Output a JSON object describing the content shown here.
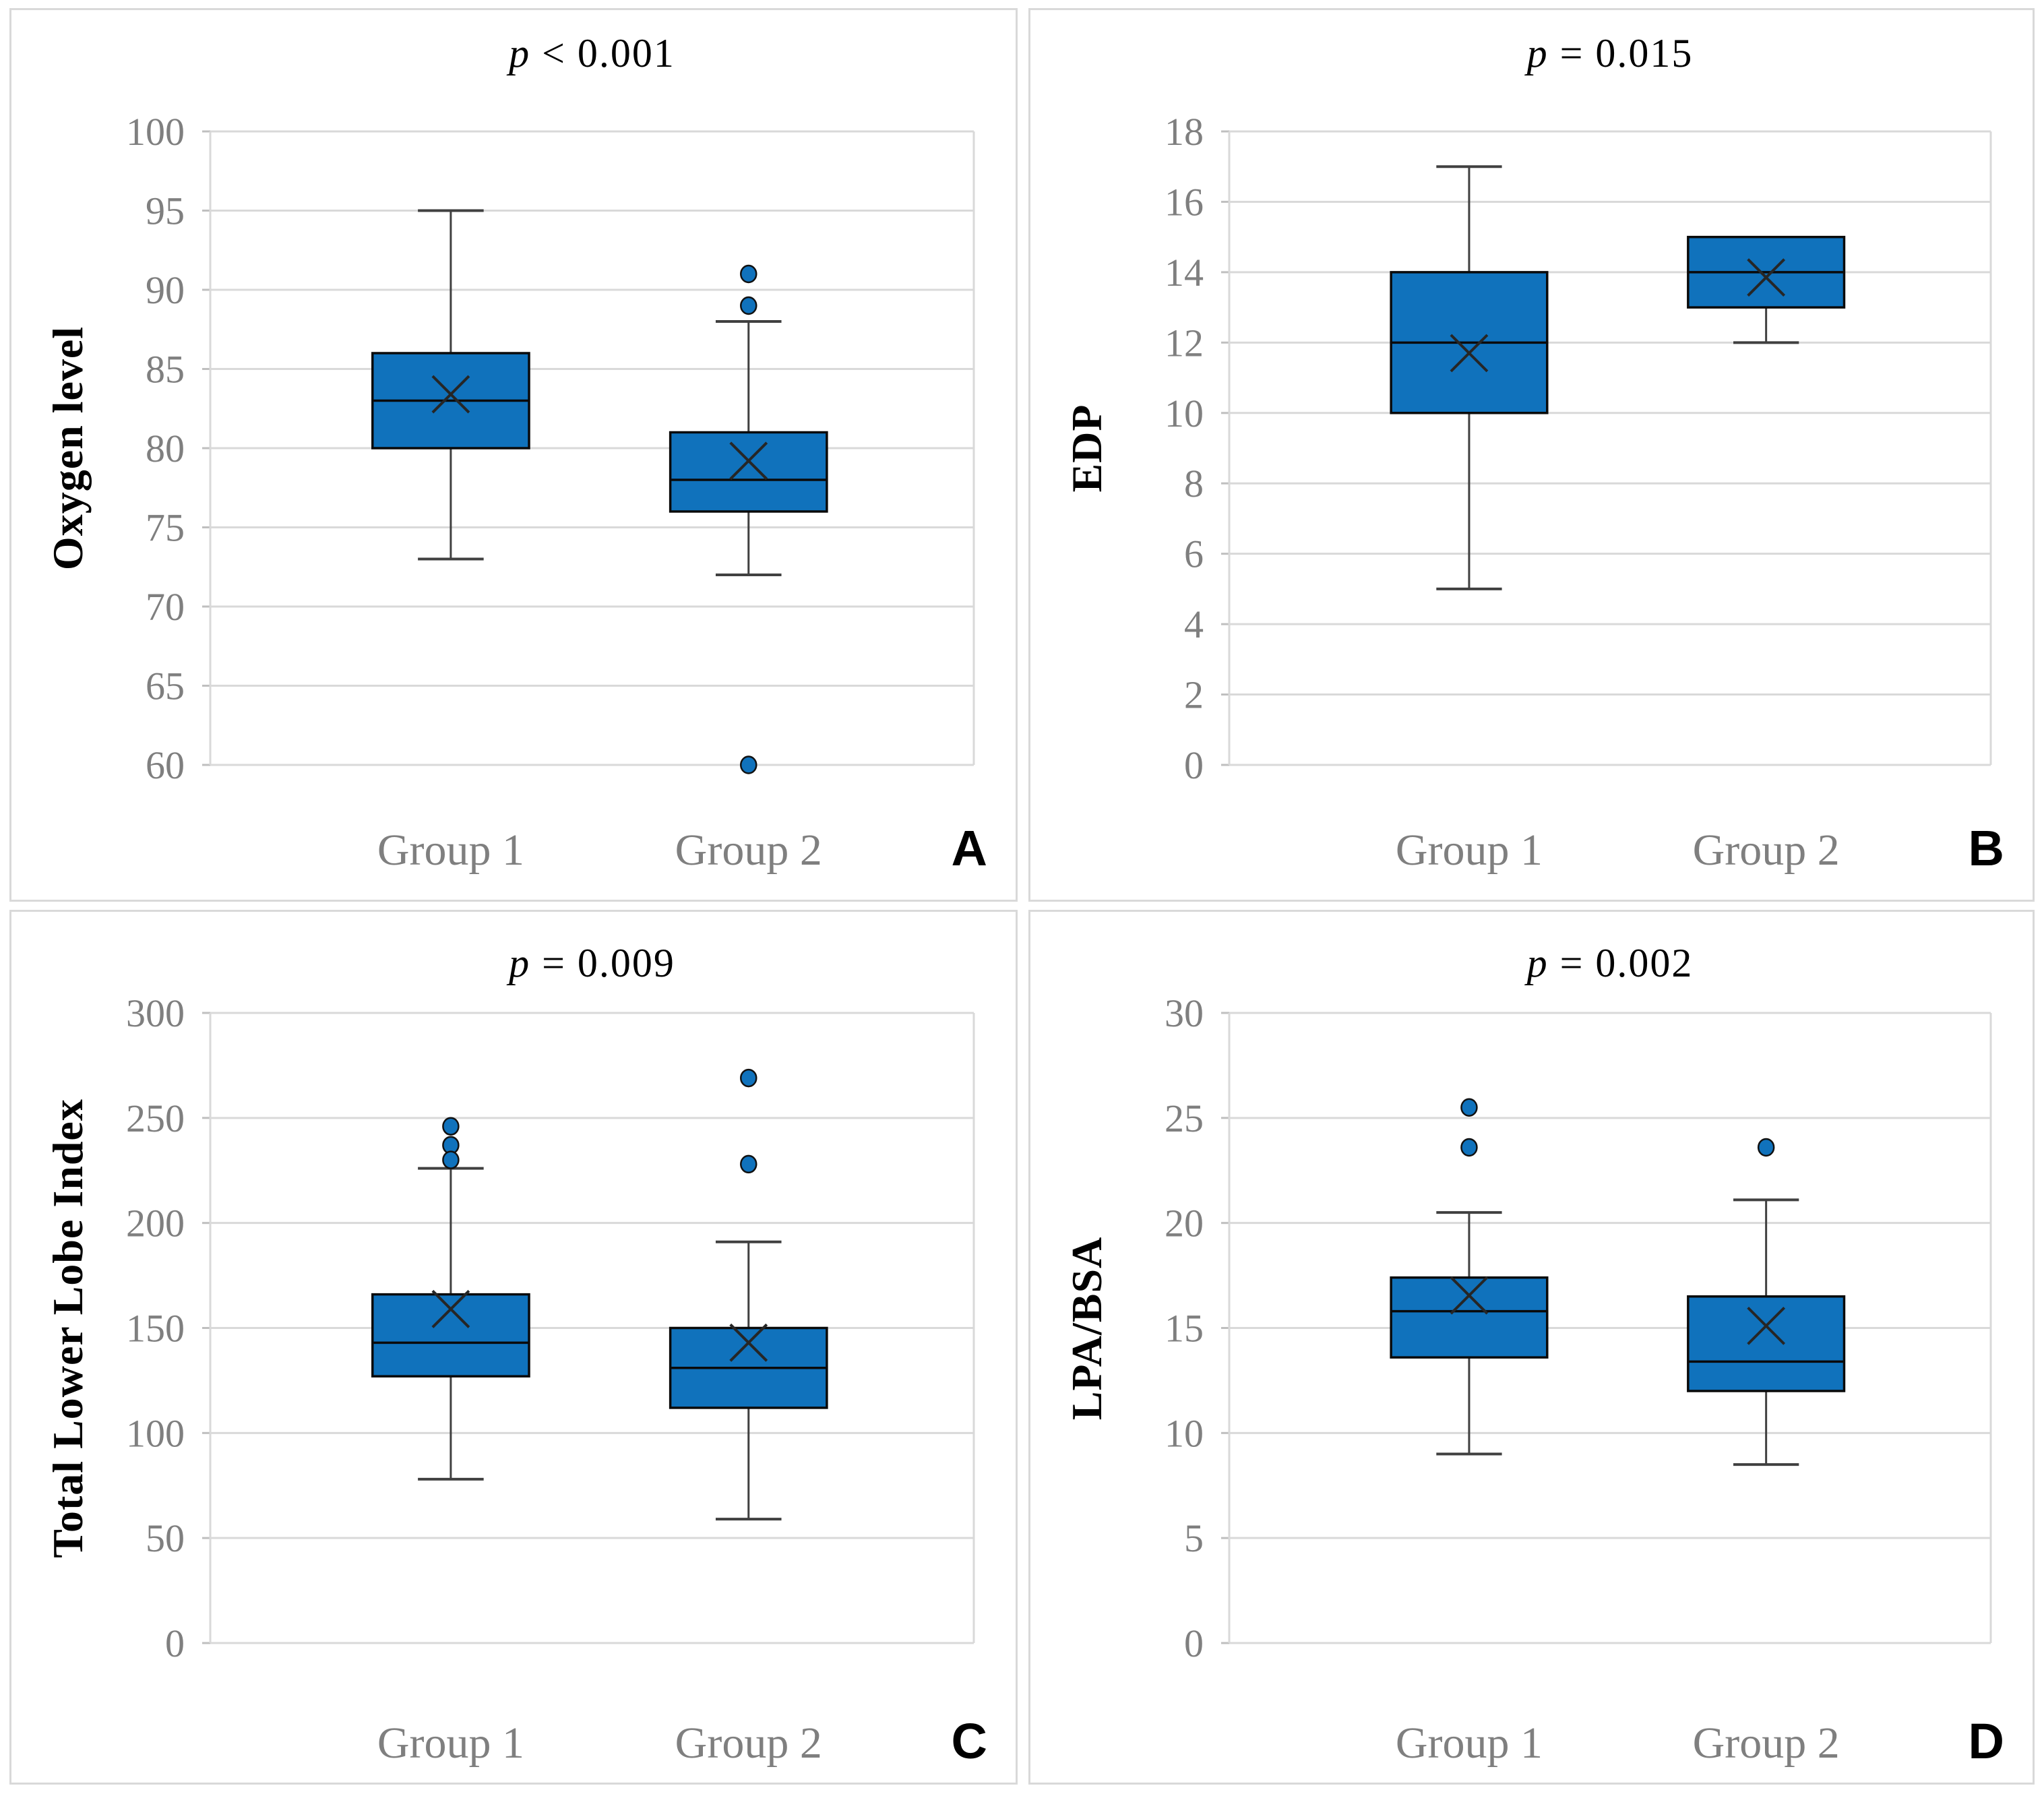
{
  "colors": {
    "box_fill": "#1072BC",
    "box_edge": "#0A0A0A",
    "median_line": "#0A0A0A",
    "whisker": "#404040",
    "mean_marker": "#262626",
    "outlier_fill": "#1072BC",
    "outlier_edge": "#111111",
    "gridline": "#D9D9D9",
    "axis_line": "#D9D9D9",
    "tick_stub": "#BFBFBF",
    "tick_label": "#7F7F7F",
    "category_label": "#7F7F7F",
    "panel_border": "#D9D9D9",
    "title_text": "#000000"
  },
  "chart_data": [
    {
      "type": "boxplot",
      "panel_label": "A",
      "title": "p < 0.001",
      "ylabel": "Oxygen level",
      "ylim": [
        60,
        100
      ],
      "yticks": [
        100,
        95,
        90,
        85,
        80,
        75,
        70,
        65,
        60
      ],
      "grid": true,
      "categories": [
        "Group 1",
        "Group 2"
      ],
      "series": [
        {
          "name": "Group 1",
          "whisker_low": 73,
          "q1": 80,
          "median": 83,
          "q3": 86,
          "whisker_high": 95,
          "mean": 83.4,
          "outliers": []
        },
        {
          "name": "Group 2",
          "whisker_low": 72,
          "q1": 76,
          "median": 78,
          "q3": 81,
          "whisker_high": 88,
          "mean": 79.2,
          "outliers": [
            91,
            89,
            60
          ]
        }
      ]
    },
    {
      "type": "boxplot",
      "panel_label": "B",
      "title": "p = 0.015",
      "ylabel": "EDP",
      "ylim": [
        0,
        18
      ],
      "yticks": [
        18,
        16,
        14,
        12,
        10,
        8,
        6,
        4,
        2,
        0
      ],
      "grid": true,
      "categories": [
        "Group 1",
        "Group 2"
      ],
      "series": [
        {
          "name": "Group 1",
          "whisker_low": 5,
          "q1": 10,
          "median": 12,
          "q3": 14,
          "whisker_high": 17,
          "mean": 11.7,
          "outliers": []
        },
        {
          "name": "Group 2",
          "whisker_low": 12,
          "q1": 13,
          "median": 14,
          "q3": 15,
          "whisker_high": 15,
          "mean": 13.85,
          "outliers": []
        }
      ]
    },
    {
      "type": "boxplot",
      "panel_label": "C",
      "title": "p = 0.009",
      "ylabel": "Total Lower Lobe Index",
      "ylim": [
        0,
        300
      ],
      "yticks": [
        300,
        250,
        200,
        150,
        100,
        50,
        0
      ],
      "grid": true,
      "categories": [
        "Group 1",
        "Group 2"
      ],
      "series": [
        {
          "name": "Group 1",
          "whisker_low": 78,
          "q1": 127,
          "median": 143,
          "q3": 166,
          "whisker_high": 226,
          "mean": 159,
          "outliers": [
            246,
            237,
            230
          ]
        },
        {
          "name": "Group 2",
          "whisker_low": 59,
          "q1": 112,
          "median": 131,
          "q3": 150,
          "whisker_high": 191,
          "mean": 143,
          "outliers": [
            269,
            228
          ]
        }
      ]
    },
    {
      "type": "boxplot",
      "panel_label": "D",
      "title": "p = 0.002",
      "ylabel": "LPA/BSA",
      "ylim": [
        0,
        30
      ],
      "yticks": [
        30,
        25,
        20,
        15,
        10,
        5,
        0
      ],
      "grid": true,
      "categories": [
        "Group 1",
        "Group 2"
      ],
      "series": [
        {
          "name": "Group 1",
          "whisker_low": 9,
          "q1": 13.6,
          "median": 15.8,
          "q3": 17.4,
          "whisker_high": 20.5,
          "mean": 16.55,
          "outliers": [
            25.5,
            23.6
          ]
        },
        {
          "name": "Group 2",
          "whisker_low": 8.5,
          "q1": 12,
          "median": 13.4,
          "q3": 16.5,
          "whisker_high": 21.1,
          "mean": 15.1,
          "outliers": [
            23.6
          ]
        }
      ]
    }
  ]
}
